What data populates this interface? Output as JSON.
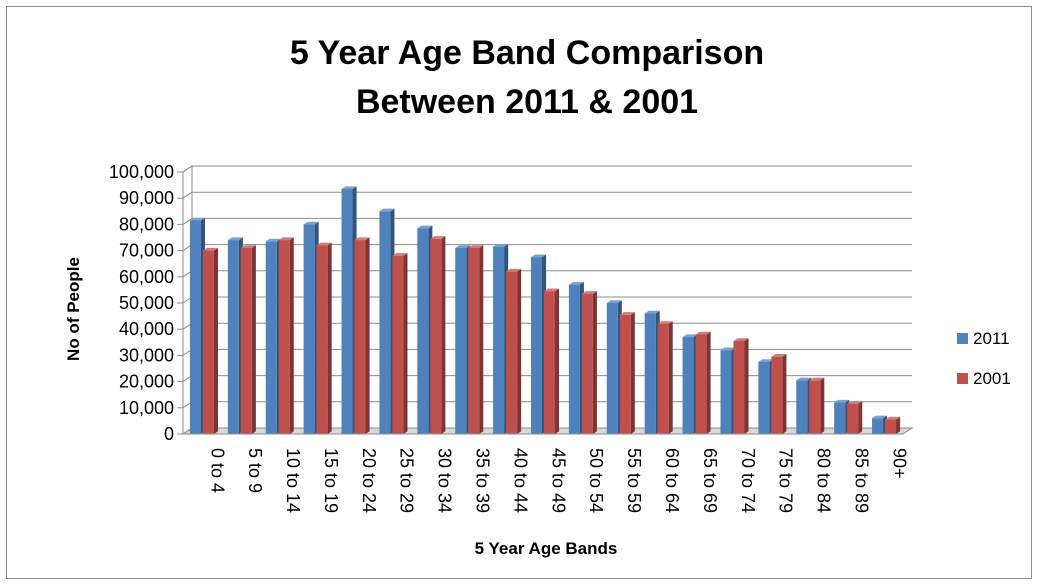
{
  "chart_data": {
    "type": "bar",
    "title_lines": [
      "5 Year Age Band Comparison",
      "Between 2011 & 2001"
    ],
    "xlabel": "5 Year Age Bands",
    "ylabel": "No of People",
    "ylim": [
      0,
      100000
    ],
    "y_ticks": [
      "0",
      "10,000",
      "20,000",
      "30,000",
      "40,000",
      "50,000",
      "60,000",
      "70,000",
      "80,000",
      "90,000",
      "100,000"
    ],
    "categories": [
      "0 to 4",
      "5 to 9",
      "10 to 14",
      "15 to 19",
      "20 to 24",
      "25 to 29",
      "30 to 34",
      "35 to 39",
      "40 to 44",
      "45 to 49",
      "50 to 54",
      "55 to 59",
      "60 to 64",
      "65 to 69",
      "70 to 74",
      "75 to 79",
      "80 to 84",
      "85 to 89",
      "90+"
    ],
    "series": [
      {
        "name": "2011",
        "color": "#4f81bd",
        "values": [
          81500,
          74000,
          73500,
          80000,
          93500,
          85000,
          78500,
          71000,
          71500,
          67500,
          57000,
          50000,
          46000,
          37000,
          32000,
          27500,
          20500,
          12000,
          6000
        ]
      },
      {
        "name": "2001",
        "color": "#c0504d",
        "values": [
          70000,
          71000,
          74000,
          72000,
          74000,
          68000,
          74500,
          71000,
          62000,
          54500,
          53500,
          45500,
          42000,
          38000,
          35500,
          29500,
          20500,
          11500,
          5500
        ]
      }
    ],
    "grid": true,
    "legend_position": "right"
  }
}
